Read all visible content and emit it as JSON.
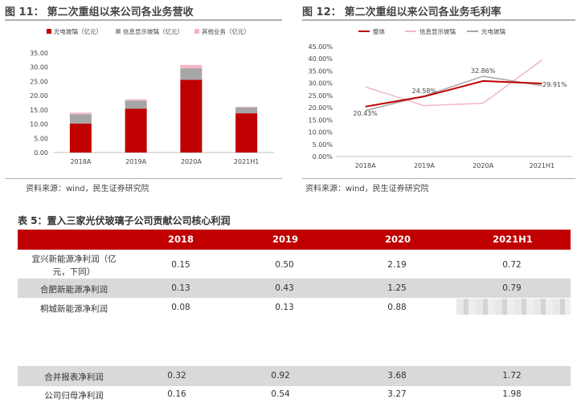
{
  "fig11": {
    "title_num": "图 11：",
    "title_text": "第二次重组以来公司各业务营收",
    "source": "资料来源：wind，民生证券研究院"
  },
  "fig12": {
    "title_num": "图 12：",
    "title_text": "第二次重组以来公司各业务毛利率",
    "source": "资料来源：wind，民生证券研究院"
  },
  "table": {
    "title": "表 5：置入三家光伏玻璃子公司贡献公司核心利润",
    "headers": [
      "2018",
      "2019",
      "2020",
      "2021H1"
    ],
    "rows": [
      {
        "label": "宜兴新能源净利润（亿\n元，下同）",
        "values": [
          "0.15",
          "0.50",
          "2.19",
          "0.72"
        ]
      },
      {
        "label": "合肥新能源净利润",
        "values": [
          "0.13",
          "0.43",
          "1.25",
          "0.79"
        ]
      },
      {
        "label": "桐城新能源净利润",
        "values": [
          "0.08",
          "0.13",
          "0.88",
          ""
        ]
      },
      {
        "label": "合并报表净利润",
        "values": [
          "0.32",
          "0.92",
          "3.68",
          "1.72"
        ]
      },
      {
        "label": "公司归母净利润",
        "values": [
          "0.16",
          "0.54",
          "3.27",
          "1.98"
        ]
      }
    ]
  },
  "chart_data": [
    {
      "type": "bar",
      "stacked": true,
      "categories": [
        "2018A",
        "2019A",
        "2020A",
        "2021H1"
      ],
      "series": [
        {
          "name": "光电玻璃（亿元）",
          "color": "#c00000",
          "values": [
            10.2,
            15.4,
            25.6,
            13.8
          ]
        },
        {
          "name": "信息显示玻璃（亿元）",
          "color": "#a6a6a6",
          "values": [
            3.2,
            2.8,
            4.0,
            2.1
          ]
        },
        {
          "name": "其他业务（亿元）",
          "color": "#f4b6c2",
          "values": [
            0.6,
            0.5,
            1.2,
            0.2
          ]
        }
      ],
      "ylim": [
        0,
        35
      ],
      "yticks": [
        "0.00",
        "5.00",
        "10.00",
        "15.00",
        "20.00",
        "25.00",
        "30.00",
        "35.00"
      ],
      "legend": "top",
      "grid": false
    },
    {
      "type": "line",
      "categories": [
        "2018A",
        "2019A",
        "2020A",
        "2021H1"
      ],
      "series": [
        {
          "name": "整体",
          "color": "#c00000",
          "values": [
            20.43,
            24.58,
            30.9,
            29.91
          ]
        },
        {
          "name": "信息显示玻璃",
          "color": "#f4b6c2",
          "values": [
            28.5,
            20.8,
            21.8,
            39.5
          ]
        },
        {
          "name": "光电玻璃",
          "color": "#a6a6a6",
          "values": [
            18.8,
            24.8,
            32.86,
            29.0
          ]
        }
      ],
      "data_labels": [
        {
          "series": "整体",
          "index": 0,
          "text": "20.43%"
        },
        {
          "series": "整体",
          "index": 1,
          "text": "24.58%"
        },
        {
          "series": "光电玻璃",
          "index": 2,
          "text": "32.86%"
        },
        {
          "series": "整体",
          "index": 3,
          "text": "29.91%"
        }
      ],
      "ylim": [
        0,
        45
      ],
      "yticks": [
        "0.00%",
        "5.00%",
        "10.00%",
        "15.00%",
        "20.00%",
        "25.00%",
        "30.00%",
        "35.00%",
        "40.00%",
        "45.00%"
      ],
      "legend": "top",
      "grid": false
    }
  ]
}
